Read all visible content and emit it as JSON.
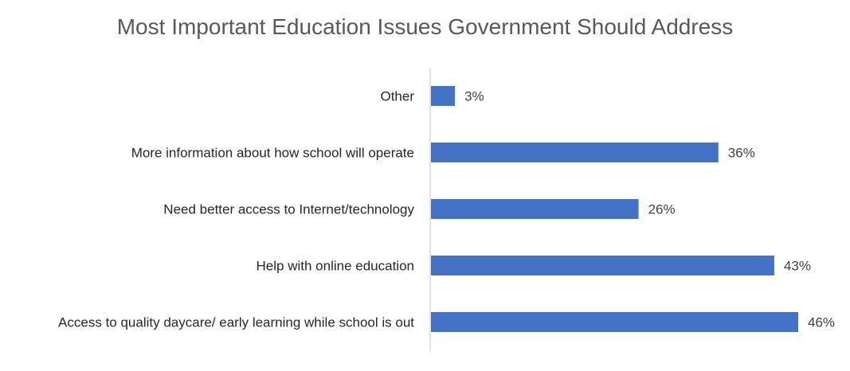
{
  "chart_data": {
    "type": "bar",
    "orientation": "horizontal",
    "title": "Most Important Education Issues Government Should Address",
    "categories": [
      "Other",
      "More information about how school will operate",
      "Need better access to Internet/technology",
      "Help with online education",
      "Access to quality daycare/ early learning while school is out"
    ],
    "values": [
      3,
      36,
      26,
      43,
      46
    ],
    "data_labels": [
      "3%",
      "36%",
      "26%",
      "43%",
      "46%"
    ],
    "unit": "%",
    "xlim": [
      0,
      46
    ],
    "grid": false,
    "legend": "none",
    "bar_color": "#4472C4"
  }
}
